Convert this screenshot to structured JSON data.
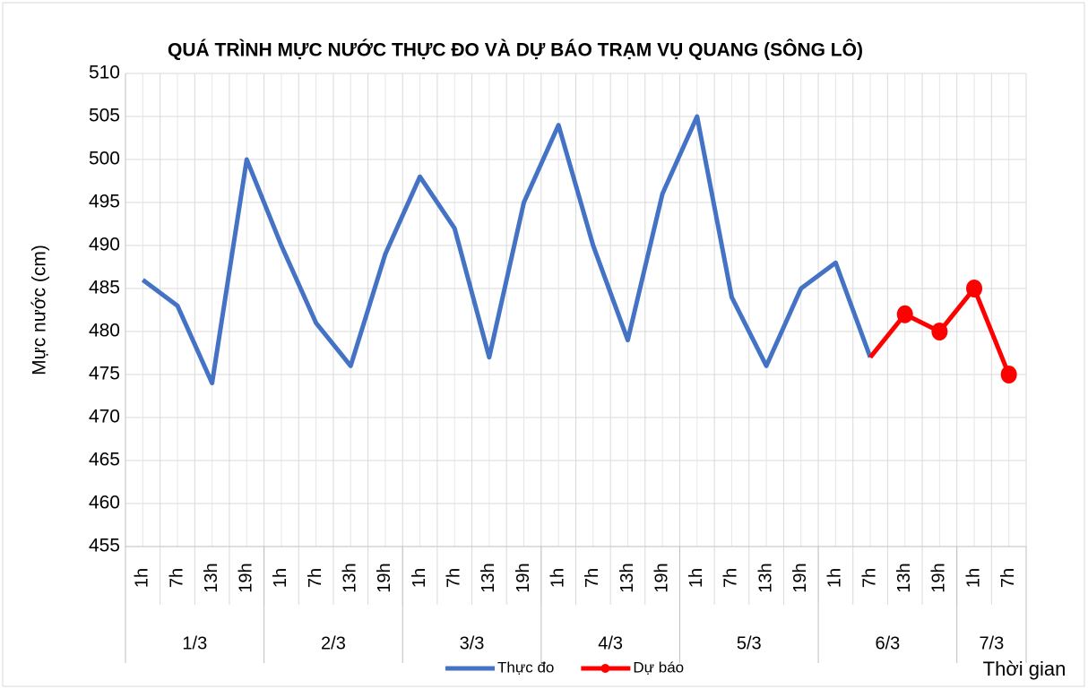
{
  "chart_data": {
    "type": "line",
    "title": "QUÁ TRÌNH MỰC NƯỚC THỰC ĐO VÀ DỰ BÁO TRẠM VỤ QUANG (SÔNG LÔ)",
    "y_label": "Mực nước (cm)",
    "x_label": "Thời gian",
    "category_groups": [
      {
        "label": "1/3",
        "categories": [
          "1h",
          "7h",
          "13h",
          "19h"
        ]
      },
      {
        "label": "2/3",
        "categories": [
          "1h",
          "7h",
          "13h",
          "19h"
        ]
      },
      {
        "label": "3/3",
        "categories": [
          "1h",
          "7h",
          "13h",
          "19h"
        ]
      },
      {
        "label": "4/3",
        "categories": [
          "1h",
          "7h",
          "13h",
          "19h"
        ]
      },
      {
        "label": "5/3",
        "categories": [
          "1h",
          "7h",
          "13h",
          "19h"
        ]
      },
      {
        "label": "6/3",
        "categories": [
          "1h",
          "7h",
          "13h",
          "19h"
        ]
      },
      {
        "label": "7/3",
        "categories": [
          "1h",
          "7h"
        ]
      }
    ],
    "series": [
      {
        "name": "Thực đo",
        "color": "#4472c4",
        "markers": false,
        "values": [
          486,
          483,
          474,
          500,
          490,
          481,
          476,
          489,
          498,
          492,
          477,
          495,
          504,
          490,
          479,
          496,
          505,
          484,
          476,
          485,
          488,
          477,
          null,
          null,
          null,
          null
        ]
      },
      {
        "name": "Dự báo",
        "color": "#ff0000",
        "markers": true,
        "values": [
          null,
          null,
          null,
          null,
          null,
          null,
          null,
          null,
          null,
          null,
          null,
          null,
          null,
          null,
          null,
          null,
          null,
          null,
          null,
          null,
          null,
          477,
          482,
          480,
          485,
          475
        ]
      }
    ],
    "ylim": [
      455,
      510
    ],
    "yticks": [
      455,
      460,
      465,
      470,
      475,
      480,
      485,
      490,
      495,
      500,
      505,
      510
    ],
    "grid": true,
    "legend": "bottom"
  }
}
